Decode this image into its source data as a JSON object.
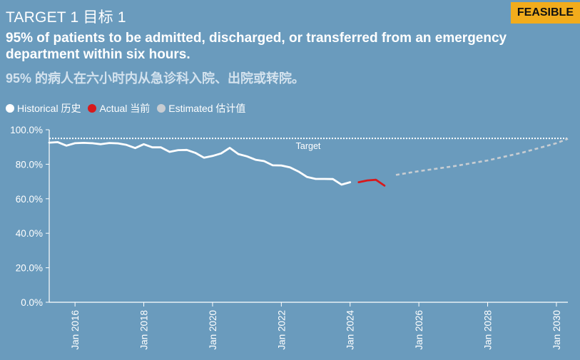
{
  "header": {
    "target_label": "TARGET 1 目标 1",
    "badge": "FEASIBLE",
    "headline": "95% of patients to be admitted, discharged, or transferred from an emergency department within six hours.",
    "subhead": "95% 的病人在六小时内从急诊科入院、出院或转院。"
  },
  "legend": [
    {
      "label": "Historical 历史",
      "color": "#ffffff"
    },
    {
      "label": "Actual 当前",
      "color": "#d7191c"
    },
    {
      "label": "Estimated 估计值",
      "color": "#c8cdd2"
    }
  ],
  "chart_data": {
    "type": "line",
    "ylim": [
      0,
      100
    ],
    "y_ticks": [
      "0.0%",
      "20.0%",
      "40.0%",
      "60.0%",
      "80.0%",
      "100.0%"
    ],
    "y_tick_values": [
      0,
      20,
      40,
      60,
      80,
      100
    ],
    "xlim": [
      "2015-04",
      "2030-05"
    ],
    "x_ticks": [
      "Jan 2016",
      "Jan 2018",
      "Jan 2020",
      "Jan 2022",
      "Jan 2024",
      "Jan 2026",
      "Jan 2028",
      "Jan 2030"
    ],
    "x_tick_values": [
      "2016-01",
      "2018-01",
      "2020-01",
      "2022-01",
      "2024-01",
      "2026-01",
      "2028-01",
      "2030-01"
    ],
    "target": {
      "label": "Target",
      "value": 95
    },
    "series": [
      {
        "name": "Historical 历史",
        "color": "#ffffff",
        "points": [
          [
            "2015-04",
            92.5
          ],
          [
            "2015-07",
            92.8
          ],
          [
            "2015-10",
            90.8
          ],
          [
            "2016-01",
            92.2
          ],
          [
            "2016-04",
            92.4
          ],
          [
            "2016-07",
            92.2
          ],
          [
            "2016-10",
            91.6
          ],
          [
            "2017-01",
            92.3
          ],
          [
            "2017-04",
            92.1
          ],
          [
            "2017-07",
            91.2
          ],
          [
            "2017-10",
            89.4
          ],
          [
            "2018-01",
            91.6
          ],
          [
            "2018-04",
            89.8
          ],
          [
            "2018-07",
            89.8
          ],
          [
            "2018-10",
            87.2
          ],
          [
            "2019-01",
            88.2
          ],
          [
            "2019-04",
            88.3
          ],
          [
            "2019-07",
            86.6
          ],
          [
            "2019-10",
            83.8
          ],
          [
            "2020-01",
            84.8
          ],
          [
            "2020-04",
            86.3
          ],
          [
            "2020-07",
            89.5
          ],
          [
            "2020-10",
            85.9
          ],
          [
            "2021-01",
            84.6
          ],
          [
            "2021-04",
            82.6
          ],
          [
            "2021-07",
            81.8
          ],
          [
            "2021-10",
            79.4
          ],
          [
            "2022-01",
            79.3
          ],
          [
            "2022-04",
            78.2
          ],
          [
            "2022-07",
            75.8
          ],
          [
            "2022-10",
            72.6
          ],
          [
            "2023-01",
            71.5
          ],
          [
            "2023-04",
            71.5
          ],
          [
            "2023-07",
            71.4
          ],
          [
            "2023-10",
            68.2
          ],
          [
            "2024-01",
            69.6
          ]
        ]
      },
      {
        "name": "Actual 当前",
        "color": "#d7191c",
        "points": [
          [
            "2024-04",
            69.6
          ],
          [
            "2024-07",
            70.6
          ],
          [
            "2024-10",
            71.0
          ],
          [
            "2025-01",
            67.6
          ]
        ]
      },
      {
        "name": "Estimated 估计值",
        "color": "#c8cdd2",
        "points": [
          [
            "2025-05",
            73.8
          ],
          [
            "2026-01",
            76.0
          ],
          [
            "2027-01",
            78.8
          ],
          [
            "2028-01",
            82.2
          ],
          [
            "2029-01",
            86.7
          ],
          [
            "2030-01",
            92.2
          ],
          [
            "2030-05",
            94.8
          ]
        ]
      }
    ]
  }
}
